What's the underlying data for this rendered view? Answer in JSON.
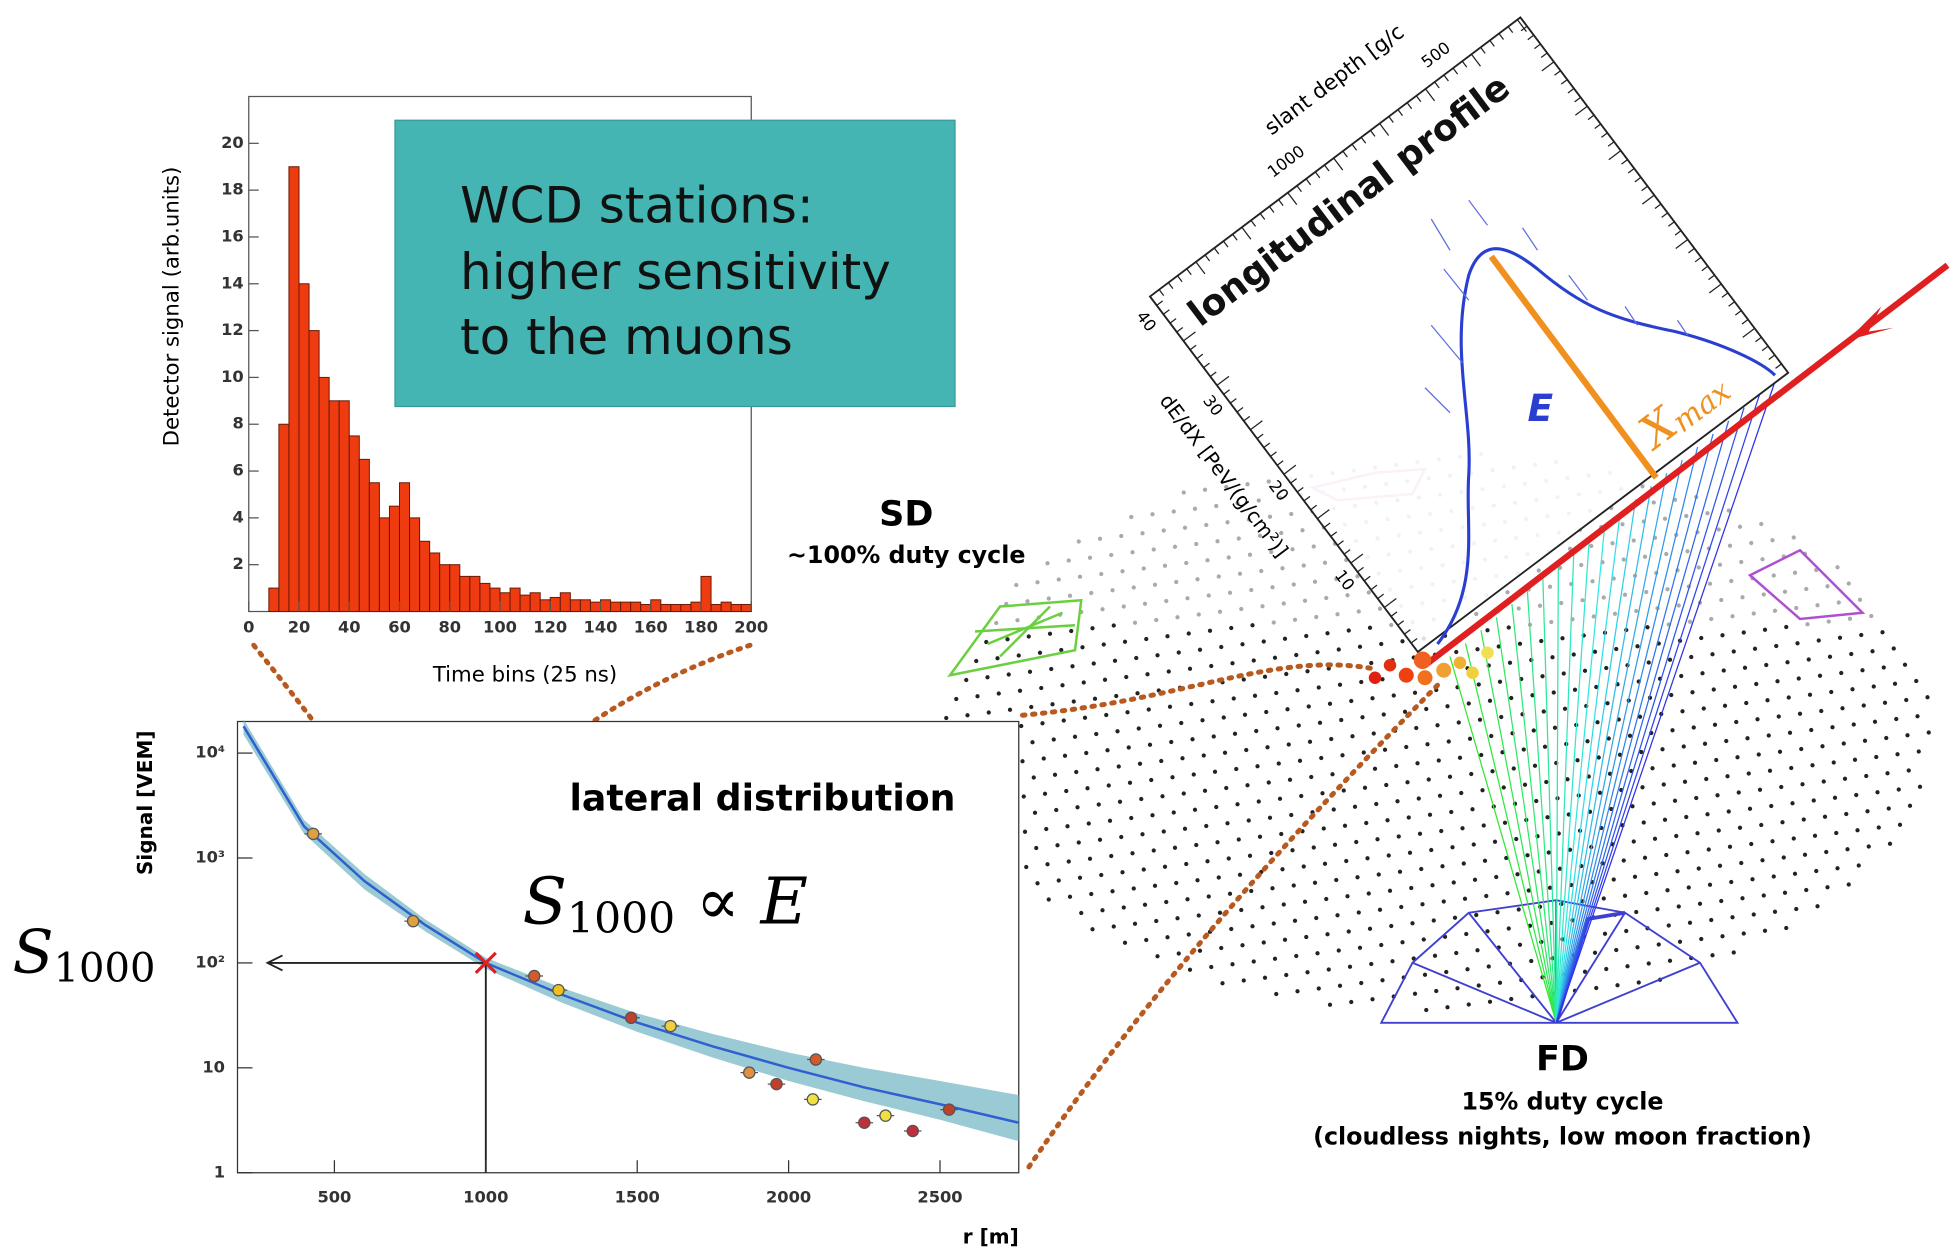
{
  "chart_data": [
    {
      "type": "histogram",
      "bins": [
        0,
        4,
        8,
        12,
        16,
        20,
        24,
        28,
        32,
        36,
        40,
        44,
        48,
        52,
        56,
        60,
        64,
        68,
        72,
        76,
        80,
        84,
        88,
        92,
        96,
        100,
        104,
        108,
        112,
        116,
        120,
        124,
        128,
        132,
        136,
        140,
        144,
        148,
        152,
        156,
        160,
        164,
        168,
        172,
        176,
        180,
        184,
        188,
        192,
        196,
        200
      ],
      "values": [
        0,
        0,
        1,
        8,
        19,
        14,
        12,
        10,
        9,
        9,
        7.5,
        6.5,
        5.5,
        4,
        4.5,
        5.5,
        4,
        3,
        2.5,
        2,
        2,
        1.5,
        1.5,
        1.2,
        1,
        0.8,
        1,
        0.7,
        0.8,
        0.5,
        0.6,
        0.8,
        0.5,
        0.5,
        0.4,
        0.5,
        0.4,
        0.4,
        0.4,
        0.3,
        0.5,
        0.3,
        0.3,
        0.3,
        0.4,
        1.5,
        0.3,
        0.4,
        0.3,
        0.3
      ],
      "color": "#ee3b10",
      "xlim": [
        0,
        200
      ],
      "xticks": [
        0,
        20,
        40,
        60,
        80,
        100,
        120,
        140,
        160,
        180,
        200
      ],
      "ylim": [
        0,
        22
      ],
      "yticks": [
        2,
        4,
        6,
        8,
        10,
        12,
        14,
        16,
        18,
        20
      ],
      "x_label": "Time bins (25 ns)",
      "y_label": "Detector signal (arb.units)"
    },
    {
      "type": "scatter",
      "x": [
        430,
        760,
        1160,
        1240,
        1480,
        1610,
        1870,
        1960,
        2090,
        2080,
        2250,
        2320,
        2410,
        2530
      ],
      "values": [
        1700,
        250,
        75,
        55,
        30,
        25,
        9,
        7,
        12,
        5,
        3,
        3.5,
        2.5,
        4
      ],
      "colors": [
        "#e0a040",
        "#e0a040",
        "#d35a2a",
        "#f0c020",
        "#c0402a",
        "#f0d040",
        "#e09040",
        "#c0402a",
        "#d35a2a",
        "#f0e040",
        "#c0303a",
        "#f0e040",
        "#c0303a",
        "#c0402a"
      ],
      "log_y": true,
      "xlim": [
        180,
        2760
      ],
      "xticks": [
        500,
        1000,
        1500,
        2000,
        2500
      ],
      "ylim": [
        1,
        20000
      ],
      "yticks": [
        1,
        10,
        {
          "value": 100,
          "label": "10²"
        },
        {
          "value": 1000,
          "label": "10³"
        },
        {
          "value": 10000,
          "label": "10⁴"
        }
      ],
      "fit": {
        "x": [
          200,
          400,
          600,
          800,
          1000,
          1250,
          1500,
          1750,
          2000,
          2250,
          2500,
          2760
        ],
        "values": [
          18000,
          2000,
          600,
          230,
          100,
          50,
          27,
          16,
          10,
          6.5,
          4.5,
          3
        ],
        "band_low": [
          15000,
          1700,
          500,
          200,
          88,
          42,
          22,
          12.5,
          7.5,
          4.8,
          3.2,
          2.0
        ],
        "band_high": [
          21000,
          2300,
          700,
          260,
          112,
          58,
          33,
          21,
          14,
          10,
          7.5,
          5.5
        ],
        "color": "#3060d0",
        "band_color": "#6fb3c0"
      },
      "title": "lateral distribution",
      "x_label": "r [m]",
      "y_label": "Signal [VEM]",
      "marker_x": 1000,
      "marker_y": 100,
      "marker_label": {
        "symbol": "S",
        "subscript": "1000"
      },
      "annotation": {
        "symbol": "S",
        "subscript": "1000",
        "rest": " ∝ E"
      }
    }
  ],
  "callout": {
    "lines": [
      "WCD stations:",
      "higher sensitivity",
      "to the muons"
    ]
  },
  "sd": {
    "label": "SD",
    "note": "~100% duty cycle"
  },
  "fd": {
    "label": "FD",
    "note": "15% duty cycle",
    "condition": "(cloudless nights, low moon fraction)"
  },
  "profile": {
    "title": "longitudinal profile",
    "x_label": "slant depth [g/c",
    "x_ticks": [
      1000,
      500
    ],
    "y_label": "dE/dX [PeV/(g/cm²)]",
    "y_ticks": [
      10,
      20,
      30,
      40
    ],
    "energy_label": "E",
    "xmax_label": {
      "symbol": "X",
      "subscript": "max"
    }
  }
}
